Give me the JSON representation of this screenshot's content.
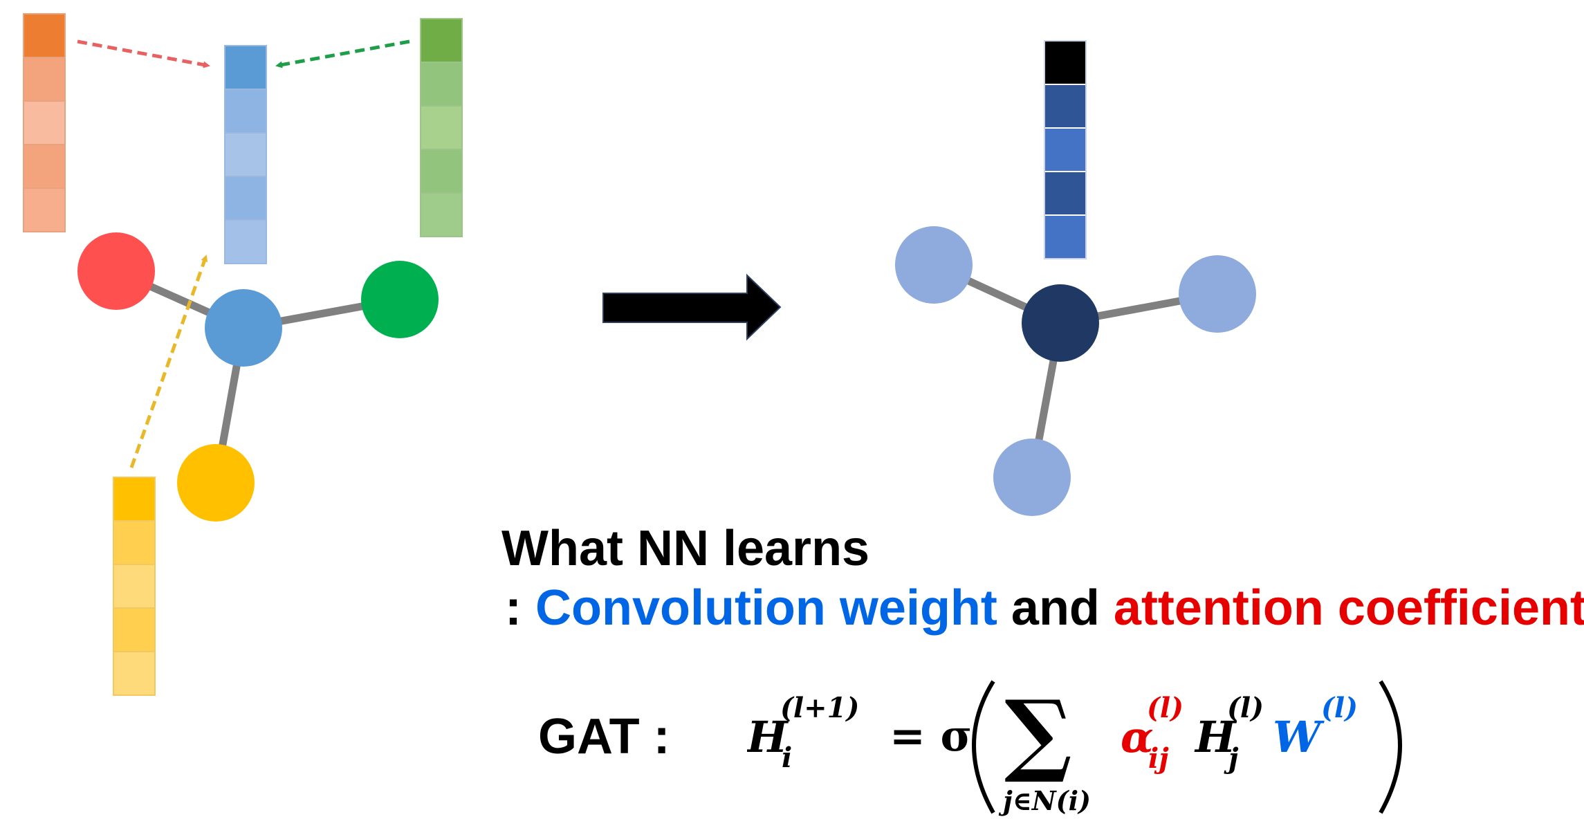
{
  "colors": {
    "edge": "#808080",
    "orange_node": "#FF5050",
    "blue_node": "#5B9BD5",
    "green_node": "#00B050",
    "yellow_node": "#FFC000",
    "out_center": "#203864",
    "out_neighbor": "#8FAADC",
    "arrow": "#000000",
    "orange_arrow": "#E86060",
    "green_arrow": "#1E9E48",
    "yellow_arrow": "#E8B828",
    "conv_blue": "#0066E6",
    "attn_red": "#E60000"
  },
  "feature_vectors": {
    "orange": [
      "#ED7D31",
      "#F4A47C",
      "#F8BBA0",
      "#F4A47C",
      "#F7AE8C"
    ],
    "blue": [
      "#5B9BD5",
      "#8DB4E2",
      "#A7C3E8",
      "#8DB4E2",
      "#A2C0E8"
    ],
    "green": [
      "#70AD47",
      "#93C47D",
      "#A9D18E",
      "#93C47D",
      "#A0CC8B"
    ],
    "yellow": [
      "#FFC000",
      "#FFD050",
      "#FFDA7A",
      "#FFD050",
      "#FFDA7A"
    ],
    "output": [
      "#000000",
      "#2F5597",
      "#4472C4",
      "#2F5597",
      "#4472C4"
    ]
  },
  "text": {
    "title": "What NN learns",
    "subtitle_prefix": ": ",
    "subtitle_conv": "Convolution weight",
    "subtitle_and": " and ",
    "subtitle_attn": "attention coefficient",
    "gat_label": "GAT :"
  },
  "formula": {
    "lhs_var": "H",
    "lhs_sup": "(l+1)",
    "lhs_sub": "i",
    "equals_sigma": "= σ",
    "sum": "∑",
    "sum_sub": "j∈N(i)",
    "alpha": "α",
    "alpha_sup": "(l)",
    "alpha_sub": "ij",
    "h_var": "H",
    "h_sup": "(l)",
    "h_sub": "j",
    "w_var": "W",
    "w_sup": "(l)"
  }
}
